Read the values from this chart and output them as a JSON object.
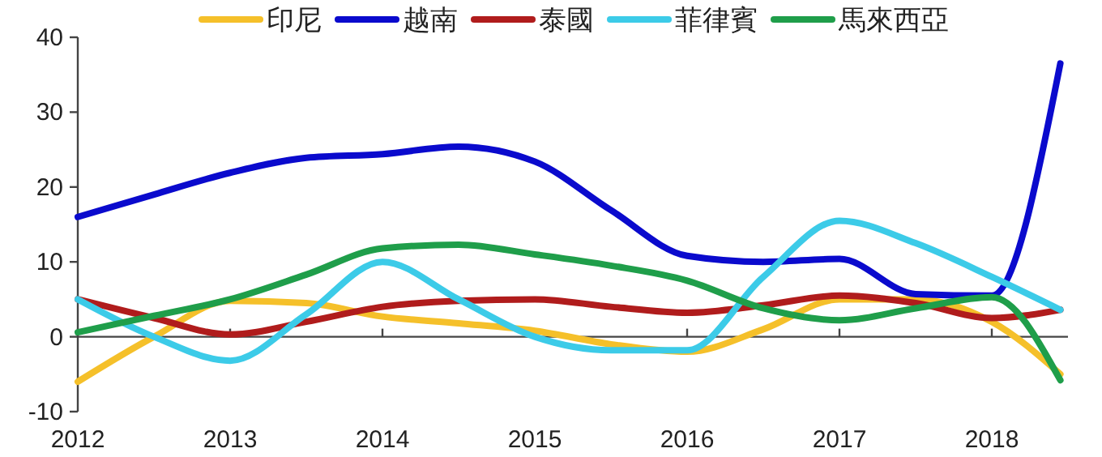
{
  "chart_data": {
    "type": "line",
    "legend": "top",
    "marker": "none",
    "line_style": "solid",
    "x": [
      2012,
      2012.5,
      2013,
      2013.5,
      2014,
      2014.5,
      2015,
      2015.5,
      2016,
      2016.5,
      2017,
      2017.5,
      2018,
      2018.45
    ],
    "xlim": [
      2012,
      2018.5
    ],
    "xticks": [
      2012,
      2013,
      2014,
      2015,
      2016,
      2017,
      2018
    ],
    "ylim": [
      -10,
      40
    ],
    "yticks": [
      -10,
      0,
      10,
      20,
      30,
      40
    ],
    "series": [
      {
        "name": "印尼",
        "color": "#f5c02a",
        "values": [
          -6,
          0,
          4.8,
          4.5,
          2.7,
          1.8,
          0.8,
          -1,
          -2,
          1,
          5,
          5,
          2,
          -5
        ]
      },
      {
        "name": "越南",
        "color": "#0a0acd",
        "values": [
          16,
          19,
          21.9,
          23.9,
          24.4,
          25.4,
          23.4,
          16.9,
          10.8,
          10,
          10.4,
          5.7,
          5.5,
          36.5
        ]
      },
      {
        "name": "泰國",
        "color": "#b01c1c",
        "values": [
          5,
          2.5,
          0.3,
          2,
          4,
          4.8,
          5,
          4,
          3.2,
          4.2,
          5.5,
          4.5,
          2.5,
          3.6
        ]
      },
      {
        "name": "菲律賓",
        "color": "#3ccbe8",
        "values": [
          5,
          0,
          -3.2,
          3,
          10,
          5,
          0,
          -1.8,
          -1.8,
          8,
          15.5,
          12.5,
          8,
          3.6
        ]
      },
      {
        "name": "馬來西亞",
        "color": "#1f9e4a",
        "values": [
          0.6,
          2.8,
          5,
          8.3,
          11.8,
          12.3,
          11,
          9.5,
          7.5,
          3.8,
          2.2,
          3.8,
          5.3,
          -5.8
        ]
      }
    ]
  }
}
